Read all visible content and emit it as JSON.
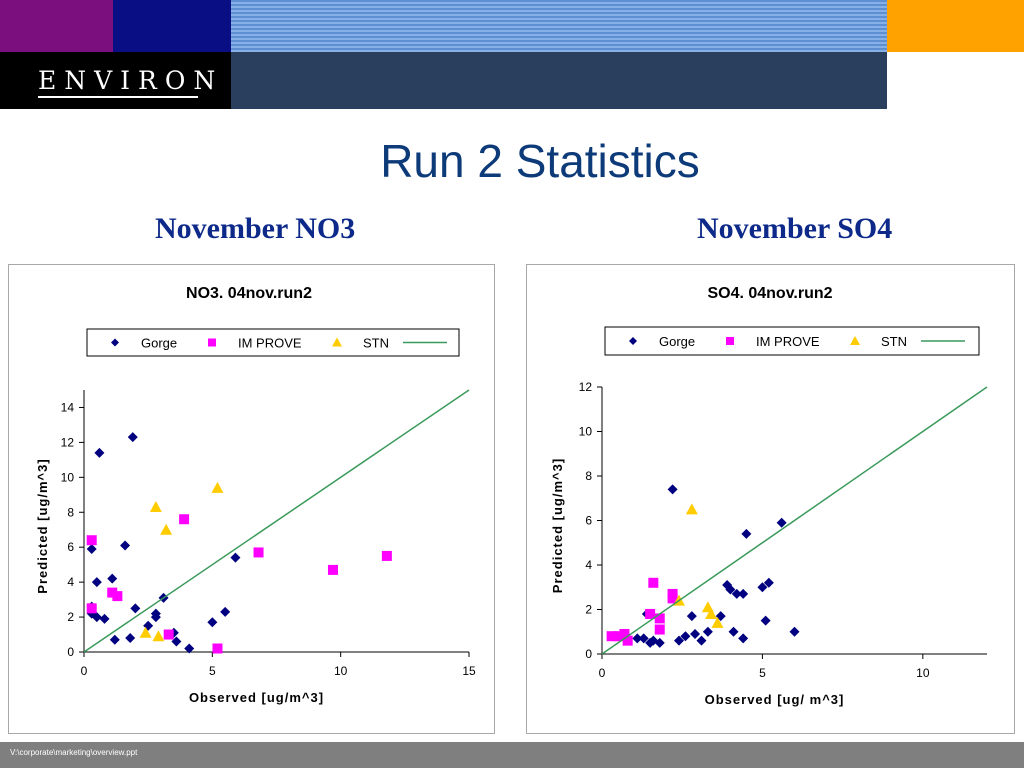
{
  "header": {
    "logo_text": "ENVIRON"
  },
  "slide_title": "Run 2 Statistics",
  "subtitles": {
    "left": "November NO3",
    "right": "November SO4"
  },
  "footer": {
    "path": "V:\\corporate\\marketing\\overview.ppt"
  },
  "colors": {
    "gorge": "#000080",
    "improve": "#ff00ff",
    "stn": "#ffcc00",
    "line": "#3a9a5b",
    "title_blue": "#0d3a78"
  },
  "chart_data": [
    {
      "type": "scatter",
      "title": "NO3.  04nov.run2",
      "xlabel": "Observed [ug/m^3]",
      "ylabel": "Predicted [ug/m^3]",
      "xlim": [
        0,
        15
      ],
      "ylim": [
        0,
        15
      ],
      "xticks": [
        "0",
        "5",
        "10",
        "15"
      ],
      "yticks": [
        "0",
        "2",
        "4",
        "6",
        "8",
        "10",
        "12",
        "14"
      ],
      "legend_labels": {
        "gorge": "Gorge",
        "improve": "IM PROVE",
        "stn": "STN"
      },
      "grid": false,
      "legend_position": "top",
      "series": [
        {
          "name": "Gorge",
          "marker": "diamond",
          "points": [
            [
              0.3,
              2.6
            ],
            [
              0.3,
              2.2
            ],
            [
              0.5,
              2.0
            ],
            [
              0.8,
              1.9
            ],
            [
              0.3,
              5.9
            ],
            [
              0.6,
              11.4
            ],
            [
              1.9,
              12.3
            ],
            [
              0.5,
              4.0
            ],
            [
              1.1,
              4.2
            ],
            [
              1.2,
              0.7
            ],
            [
              1.6,
              6.1
            ],
            [
              2.0,
              2.5
            ],
            [
              1.8,
              0.8
            ],
            [
              2.5,
              1.5
            ],
            [
              2.8,
              2.0
            ],
            [
              2.8,
              2.2
            ],
            [
              3.1,
              3.1
            ],
            [
              3.5,
              1.1
            ],
            [
              3.6,
              0.6
            ],
            [
              4.1,
              0.2
            ],
            [
              5.0,
              1.7
            ],
            [
              5.5,
              2.3
            ],
            [
              5.9,
              5.4
            ]
          ]
        },
        {
          "name": "IM PROVE",
          "marker": "square",
          "points": [
            [
              0.3,
              6.4
            ],
            [
              0.3,
              2.5
            ],
            [
              1.1,
              3.4
            ],
            [
              1.3,
              3.2
            ],
            [
              3.3,
              1.0
            ],
            [
              3.9,
              7.6
            ],
            [
              5.2,
              0.2
            ],
            [
              6.8,
              5.7
            ],
            [
              9.7,
              4.7
            ],
            [
              11.8,
              5.5
            ]
          ]
        },
        {
          "name": "STN",
          "marker": "triangle",
          "points": [
            [
              2.4,
              1.1
            ],
            [
              2.8,
              8.3
            ],
            [
              2.9,
              0.9
            ],
            [
              3.2,
              7.0
            ],
            [
              5.2,
              9.4
            ]
          ]
        },
        {
          "name": "1:1 line",
          "marker": "line",
          "points": [
            [
              0,
              0
            ],
            [
              15,
              15
            ]
          ]
        }
      ]
    },
    {
      "type": "scatter",
      "title": "SO4.  04nov.run2",
      "xlabel": "Observed [ug/ m^3]",
      "ylabel": "Predicted [ug/m^3]",
      "xlim": [
        0,
        12
      ],
      "ylim": [
        0,
        12
      ],
      "xticks": [
        "0",
        "5",
        "10"
      ],
      "yticks": [
        "0",
        "2",
        "4",
        "6",
        "8",
        "10",
        "12"
      ],
      "legend_labels": {
        "gorge": "Gorge",
        "improve": "IM PROVE",
        "stn": "STN"
      },
      "grid": false,
      "legend_position": "top",
      "series": [
        {
          "name": "Gorge",
          "marker": "diamond",
          "points": [
            [
              1.1,
              0.7
            ],
            [
              1.3,
              0.7
            ],
            [
              1.5,
              0.5
            ],
            [
              1.6,
              0.6
            ],
            [
              1.8,
              0.5
            ],
            [
              1.4,
              1.8
            ],
            [
              2.2,
              7.4
            ],
            [
              2.4,
              0.6
            ],
            [
              2.6,
              0.8
            ],
            [
              2.8,
              1.7
            ],
            [
              2.9,
              0.9
            ],
            [
              3.1,
              0.6
            ],
            [
              3.3,
              1.0
            ],
            [
              3.7,
              1.7
            ],
            [
              3.9,
              3.1
            ],
            [
              4.0,
              2.9
            ],
            [
              4.1,
              1.0
            ],
            [
              4.2,
              2.7
            ],
            [
              4.4,
              2.7
            ],
            [
              4.4,
              0.7
            ],
            [
              4.5,
              5.4
            ],
            [
              5.0,
              3.0
            ],
            [
              5.1,
              1.5
            ],
            [
              5.2,
              3.2
            ],
            [
              5.6,
              5.9
            ],
            [
              6.0,
              1.0
            ]
          ]
        },
        {
          "name": "IM PROVE",
          "marker": "square",
          "points": [
            [
              0.3,
              0.8
            ],
            [
              0.5,
              0.8
            ],
            [
              0.7,
              0.9
            ],
            [
              0.8,
              0.6
            ],
            [
              1.5,
              1.8
            ],
            [
              1.6,
              3.2
            ],
            [
              1.8,
              1.6
            ],
            [
              1.8,
              1.1
            ],
            [
              2.2,
              2.5
            ],
            [
              2.2,
              2.7
            ]
          ]
        },
        {
          "name": "STN",
          "marker": "triangle",
          "points": [
            [
              2.4,
              2.4
            ],
            [
              2.8,
              6.5
            ],
            [
              3.3,
              2.1
            ],
            [
              3.4,
              1.8
            ],
            [
              3.6,
              1.4
            ]
          ]
        },
        {
          "name": "1:1 line",
          "marker": "line",
          "points": [
            [
              0,
              0
            ],
            [
              12,
              12
            ]
          ]
        }
      ]
    }
  ]
}
